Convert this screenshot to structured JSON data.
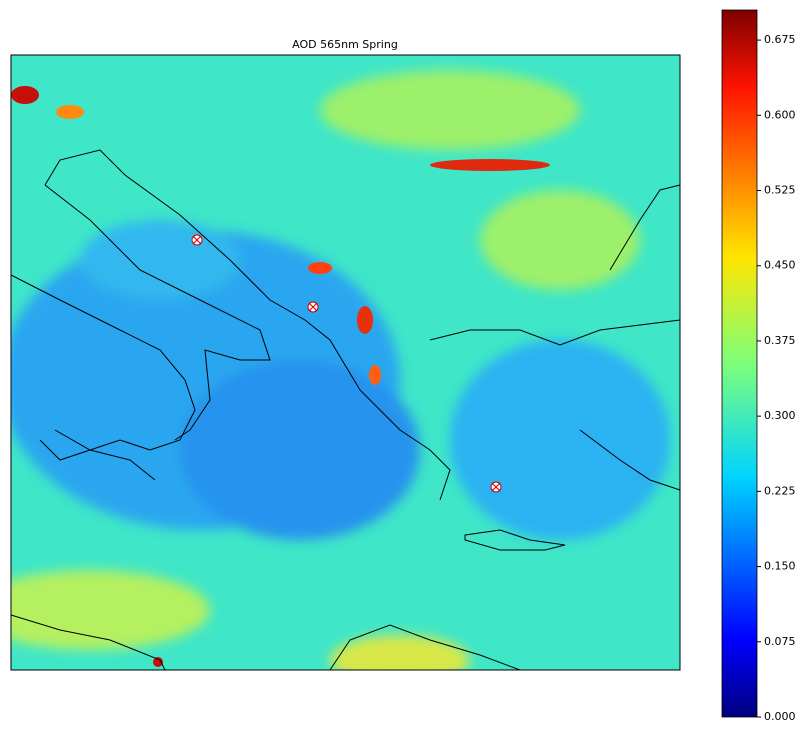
{
  "chart_data": {
    "type": "map",
    "title": "AOD 565nm Spring",
    "colorbar_lim": [
      0,
      0.705
    ],
    "colorbar_ticks": [
      {
        "value": 0,
        "label": "0.000"
      },
      {
        "value": 0.075,
        "label": "0.075"
      },
      {
        "value": 0.15,
        "label": "0.150"
      },
      {
        "value": 0.225,
        "label": "0.225"
      },
      {
        "value": 0.3,
        "label": "0.300"
      },
      {
        "value": 0.375,
        "label": "0.375"
      },
      {
        "value": 0.45,
        "label": "0.450"
      },
      {
        "value": 0.525,
        "label": "0.525"
      },
      {
        "value": 0.6,
        "label": "0.600"
      },
      {
        "value": 0.675,
        "label": "0.675"
      }
    ]
  }
}
